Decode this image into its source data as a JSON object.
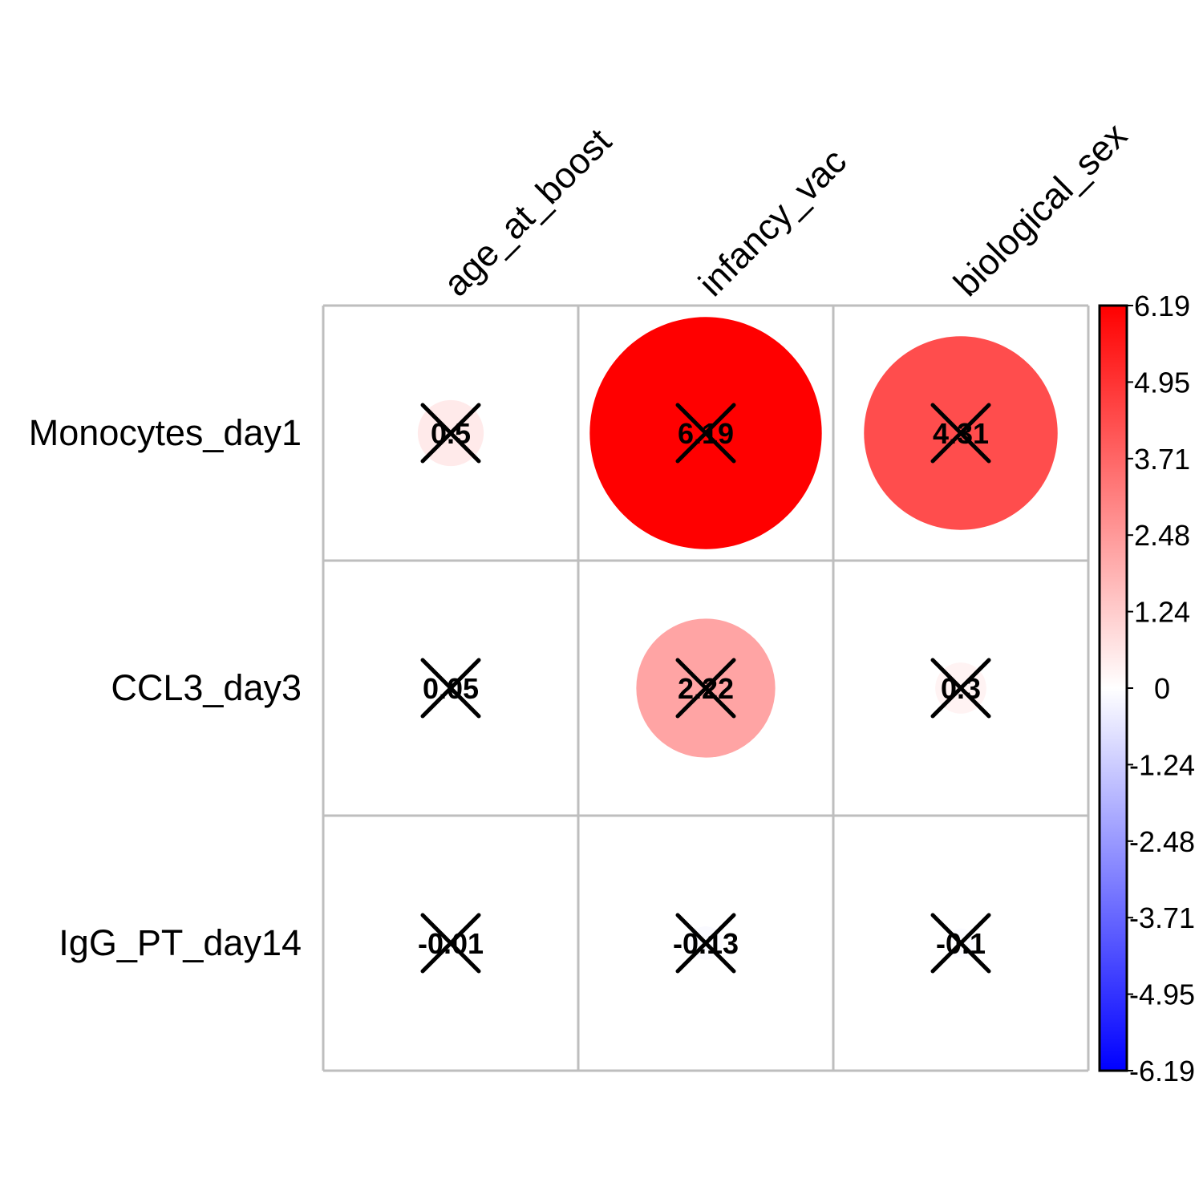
{
  "chart_data": {
    "type": "heatmap",
    "style": "circle",
    "rows": [
      "Monocytes_day1",
      "CCL3_day3",
      "IgG_PT_day14"
    ],
    "cols": [
      "age_at_boost",
      "infancy_vac",
      "biological_sex"
    ],
    "values": [
      [
        0.5,
        6.19,
        4.31
      ],
      [
        0.05,
        2.22,
        0.3
      ],
      [
        -0.01,
        -0.13,
        -0.1
      ]
    ],
    "value_labels": [
      [
        "0.5",
        "6.19",
        "4.31"
      ],
      [
        "0.05",
        "2.22",
        "0.3"
      ],
      [
        "-0.01",
        "-0.13",
        "-0.1"
      ]
    ],
    "crossed_out": [
      [
        true,
        true,
        true
      ],
      [
        true,
        true,
        true
      ],
      [
        true,
        true,
        true
      ]
    ],
    "color_scale": {
      "min": -6.19,
      "max": 6.19,
      "low_color": "#0000ff",
      "mid_color": "#ffffff",
      "high_color": "#ff0000",
      "ticks": [
        "6.19",
        "4.95",
        "3.71",
        "2.48",
        "1.24",
        "0",
        "-1.24",
        "-2.48",
        "-3.71",
        "-4.95",
        "-6.19"
      ]
    },
    "grid_color": "#bebebe",
    "legend": "right"
  }
}
